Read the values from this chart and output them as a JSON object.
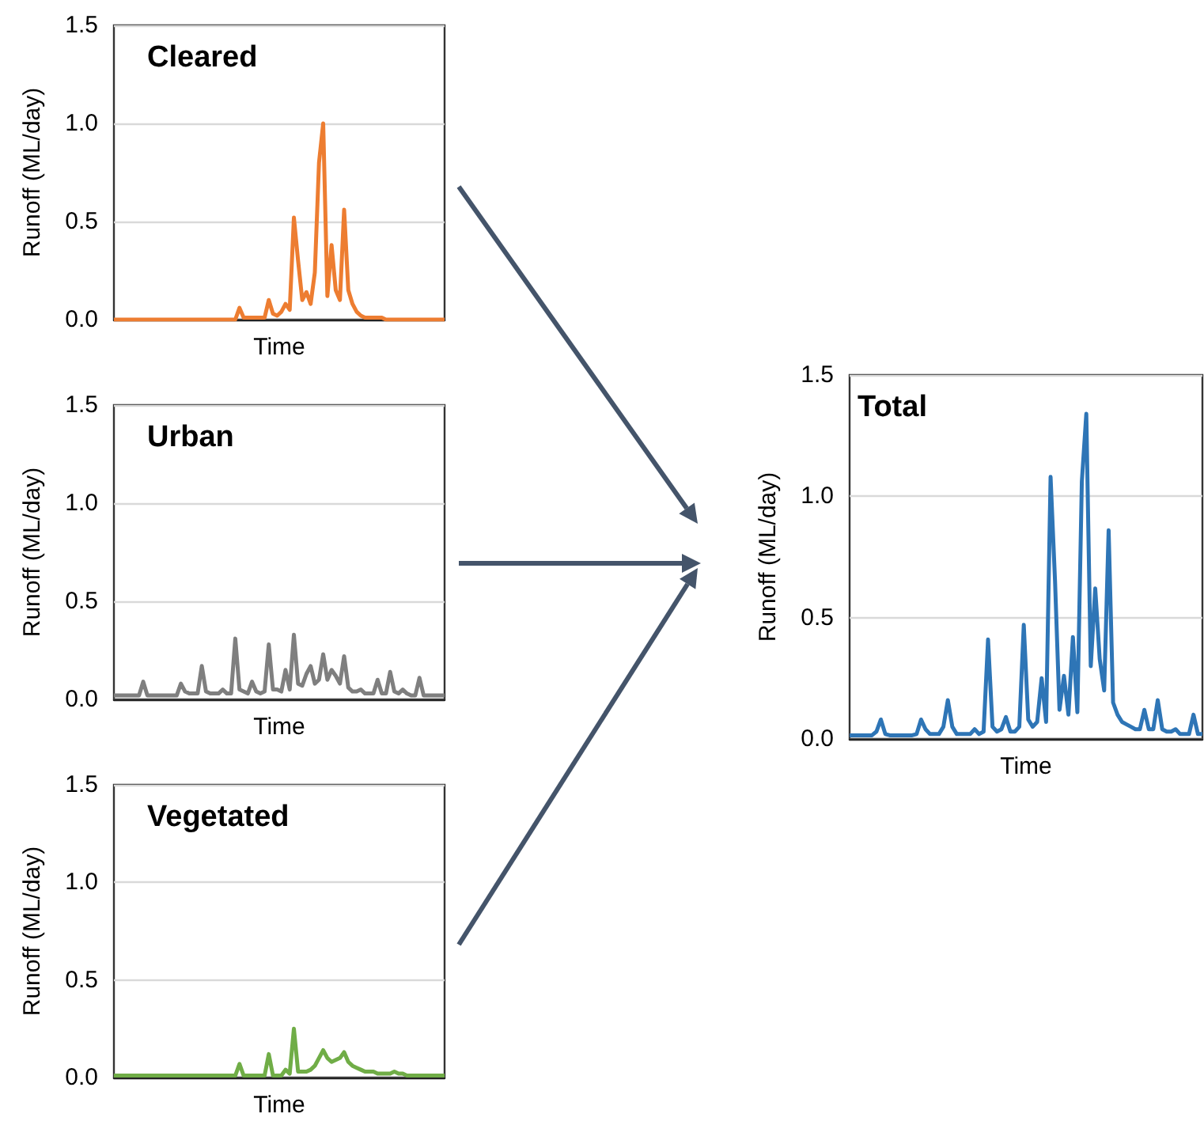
{
  "chart_data": [
    {
      "type": "line",
      "title": "Cleared",
      "xlabel": "Time",
      "ylabel": "Runoff (ML/day)",
      "ylim": [
        0,
        1.5
      ],
      "yticks": [
        {
          "value": 0,
          "label": "0.0"
        },
        {
          "value": 0.5,
          "label": "0.5"
        },
        {
          "value": 1,
          "label": "1.0"
        },
        {
          "value": 1.5,
          "label": "1.5"
        }
      ],
      "grid": "y",
      "tick_labels": "y",
      "categories": [
        null,
        null,
        null,
        null,
        null,
        null,
        null,
        null,
        null,
        null,
        null,
        null,
        null,
        null,
        null,
        null,
        null,
        null,
        null,
        null,
        null,
        null,
        null,
        null,
        null,
        null,
        null,
        null,
        null,
        null,
        null,
        null,
        null,
        null,
        null,
        null,
        null,
        null,
        null,
        null,
        null,
        null,
        null,
        null,
        null,
        null,
        null,
        null,
        null,
        null,
        null,
        null,
        null,
        null,
        null,
        null,
        null,
        null,
        null,
        null,
        null,
        null,
        null,
        null,
        null,
        null,
        null,
        null,
        null,
        null,
        null,
        null,
        null,
        null,
        null,
        null,
        null,
        null,
        null,
        null
      ],
      "series": [
        {
          "color": "#ed7d31",
          "values": [
            0,
            0,
            0,
            0,
            0,
            0,
            0,
            0,
            0,
            0,
            0,
            0,
            0,
            0,
            0,
            0,
            0,
            0,
            0,
            0,
            0,
            0,
            0,
            0,
            0,
            0,
            0,
            0,
            0,
            0,
            0.06,
            0.01,
            0.01,
            0.01,
            0.01,
            0.01,
            0.01,
            0.1,
            0.03,
            0.02,
            0.04,
            0.08,
            0.05,
            0.52,
            0.3,
            0.1,
            0.14,
            0.08,
            0.24,
            0.8,
            1.0,
            0.12,
            0.38,
            0.15,
            0.1,
            0.56,
            0.15,
            0.08,
            0.04,
            0.02,
            0.01,
            0.01,
            0.01,
            0.01,
            0.01,
            0,
            0,
            0,
            0,
            0,
            0,
            0,
            0,
            0,
            0,
            0,
            0,
            0,
            0,
            0
          ]
        }
      ]
    },
    {
      "type": "line",
      "title": "Urban",
      "xlabel": "Time",
      "ylabel": "Runoff (ML/day)",
      "ylim": [
        0,
        1.5
      ],
      "yticks": [
        {
          "value": 0,
          "label": "0.0"
        },
        {
          "value": 0.5,
          "label": "0.5"
        },
        {
          "value": 1,
          "label": "1.0"
        },
        {
          "value": 1.5,
          "label": "1.5"
        }
      ],
      "grid": "y",
      "tick_labels": "y",
      "categories": [
        null,
        null,
        null,
        null,
        null,
        null,
        null,
        null,
        null,
        null,
        null,
        null,
        null,
        null,
        null,
        null,
        null,
        null,
        null,
        null,
        null,
        null,
        null,
        null,
        null,
        null,
        null,
        null,
        null,
        null,
        null,
        null,
        null,
        null,
        null,
        null,
        null,
        null,
        null,
        null,
        null,
        null,
        null,
        null,
        null,
        null,
        null,
        null,
        null,
        null,
        null,
        null,
        null,
        null,
        null,
        null,
        null,
        null,
        null,
        null,
        null,
        null,
        null,
        null,
        null,
        null,
        null,
        null,
        null,
        null,
        null,
        null,
        null,
        null,
        null,
        null,
        null,
        null,
        null,
        null
      ],
      "series": [
        {
          "color": "#7f7f7f",
          "values": [
            0.02,
            0.02,
            0.02,
            0.02,
            0.02,
            0.02,
            0.02,
            0.09,
            0.02,
            0.02,
            0.02,
            0.02,
            0.02,
            0.02,
            0.02,
            0.02,
            0.08,
            0.04,
            0.03,
            0.03,
            0.03,
            0.17,
            0.04,
            0.03,
            0.03,
            0.03,
            0.05,
            0.03,
            0.03,
            0.31,
            0.05,
            0.04,
            0.03,
            0.09,
            0.04,
            0.03,
            0.04,
            0.28,
            0.05,
            0.05,
            0.04,
            0.15,
            0.05,
            0.33,
            0.08,
            0.07,
            0.13,
            0.17,
            0.08,
            0.1,
            0.23,
            0.1,
            0.15,
            0.12,
            0.08,
            0.22,
            0.06,
            0.04,
            0.04,
            0.05,
            0.03,
            0.03,
            0.03,
            0.1,
            0.03,
            0.03,
            0.14,
            0.04,
            0.03,
            0.05,
            0.03,
            0.02,
            0.02,
            0.11,
            0.02,
            0.02,
            0.02,
            0.02,
            0.02,
            0.02
          ]
        }
      ]
    },
    {
      "type": "line",
      "title": "Vegetated",
      "xlabel": "Time",
      "ylabel": "Runoff (ML/day)",
      "ylim": [
        0,
        1.5
      ],
      "yticks": [
        {
          "value": 0,
          "label": "0.0"
        },
        {
          "value": 0.5,
          "label": "0.5"
        },
        {
          "value": 1,
          "label": "1.0"
        },
        {
          "value": 1.5,
          "label": "1.5"
        }
      ],
      "grid": "y",
      "tick_labels": "y",
      "categories": [
        null,
        null,
        null,
        null,
        null,
        null,
        null,
        null,
        null,
        null,
        null,
        null,
        null,
        null,
        null,
        null,
        null,
        null,
        null,
        null,
        null,
        null,
        null,
        null,
        null,
        null,
        null,
        null,
        null,
        null,
        null,
        null,
        null,
        null,
        null,
        null,
        null,
        null,
        null,
        null,
        null,
        null,
        null,
        null,
        null,
        null,
        null,
        null,
        null,
        null,
        null,
        null,
        null,
        null,
        null,
        null,
        null,
        null,
        null,
        null,
        null,
        null,
        null,
        null,
        null,
        null,
        null,
        null,
        null,
        null,
        null,
        null,
        null,
        null,
        null,
        null,
        null,
        null,
        null,
        null
      ],
      "series": [
        {
          "color": "#70ad47",
          "values": [
            0.01,
            0.01,
            0.01,
            0.01,
            0.01,
            0.01,
            0.01,
            0.01,
            0.01,
            0.01,
            0.01,
            0.01,
            0.01,
            0.01,
            0.01,
            0.01,
            0.01,
            0.01,
            0.01,
            0.01,
            0.01,
            0.01,
            0.01,
            0.01,
            0.01,
            0.01,
            0.01,
            0.01,
            0.01,
            0.01,
            0.07,
            0.01,
            0.01,
            0.01,
            0.01,
            0.01,
            0.01,
            0.12,
            0.01,
            0.01,
            0.01,
            0.04,
            0.02,
            0.25,
            0.03,
            0.03,
            0.03,
            0.04,
            0.06,
            0.1,
            0.14,
            0.1,
            0.08,
            0.09,
            0.1,
            0.13,
            0.08,
            0.06,
            0.05,
            0.04,
            0.03,
            0.03,
            0.03,
            0.02,
            0.02,
            0.02,
            0.02,
            0.03,
            0.02,
            0.02,
            0.01,
            0.01,
            0.01,
            0.01,
            0.01,
            0.01,
            0.01,
            0.01,
            0.01,
            0.01
          ]
        }
      ]
    },
    {
      "type": "line",
      "title": "Total",
      "xlabel": "Time",
      "ylabel": "Runoff (ML/day)",
      "ylim": [
        0,
        1.5
      ],
      "yticks": [
        {
          "value": 0,
          "label": "0.0"
        },
        {
          "value": 0.5,
          "label": "0.5"
        },
        {
          "value": 1,
          "label": "1.0"
        },
        {
          "value": 1.5,
          "label": "1.5"
        }
      ],
      "grid": "y",
      "tick_labels": "y",
      "categories": [
        null,
        null,
        null,
        null,
        null,
        null,
        null,
        null,
        null,
        null,
        null,
        null,
        null,
        null,
        null,
        null,
        null,
        null,
        null,
        null,
        null,
        null,
        null,
        null,
        null,
        null,
        null,
        null,
        null,
        null,
        null,
        null,
        null,
        null,
        null,
        null,
        null,
        null,
        null,
        null,
        null,
        null,
        null,
        null,
        null,
        null,
        null,
        null,
        null,
        null,
        null,
        null,
        null,
        null,
        null,
        null,
        null,
        null,
        null,
        null,
        null,
        null,
        null,
        null,
        null,
        null,
        null,
        null,
        null,
        null,
        null,
        null,
        null,
        null,
        null,
        null,
        null,
        null,
        null,
        null
      ],
      "series": [
        {
          "color": "#2e75b6",
          "values": [
            0.015,
            0.015,
            0.015,
            0.015,
            0.015,
            0.015,
            0.03,
            0.08,
            0.02,
            0.015,
            0.015,
            0.015,
            0.015,
            0.015,
            0.015,
            0.02,
            0.08,
            0.04,
            0.02,
            0.02,
            0.02,
            0.05,
            0.16,
            0.05,
            0.02,
            0.02,
            0.02,
            0.02,
            0.04,
            0.02,
            0.03,
            0.41,
            0.05,
            0.03,
            0.04,
            0.09,
            0.03,
            0.03,
            0.05,
            0.47,
            0.08,
            0.05,
            0.07,
            0.25,
            0.07,
            1.08,
            0.65,
            0.12,
            0.26,
            0.1,
            0.42,
            0.11,
            1.06,
            1.34,
            0.3,
            0.62,
            0.33,
            0.2,
            0.86,
            0.15,
            0.1,
            0.07,
            0.06,
            0.05,
            0.04,
            0.04,
            0.12,
            0.04,
            0.04,
            0.16,
            0.04,
            0.03,
            0.03,
            0.04,
            0.02,
            0.02,
            0.02,
            0.1,
            0.02,
            0.02
          ]
        }
      ]
    }
  ]
}
